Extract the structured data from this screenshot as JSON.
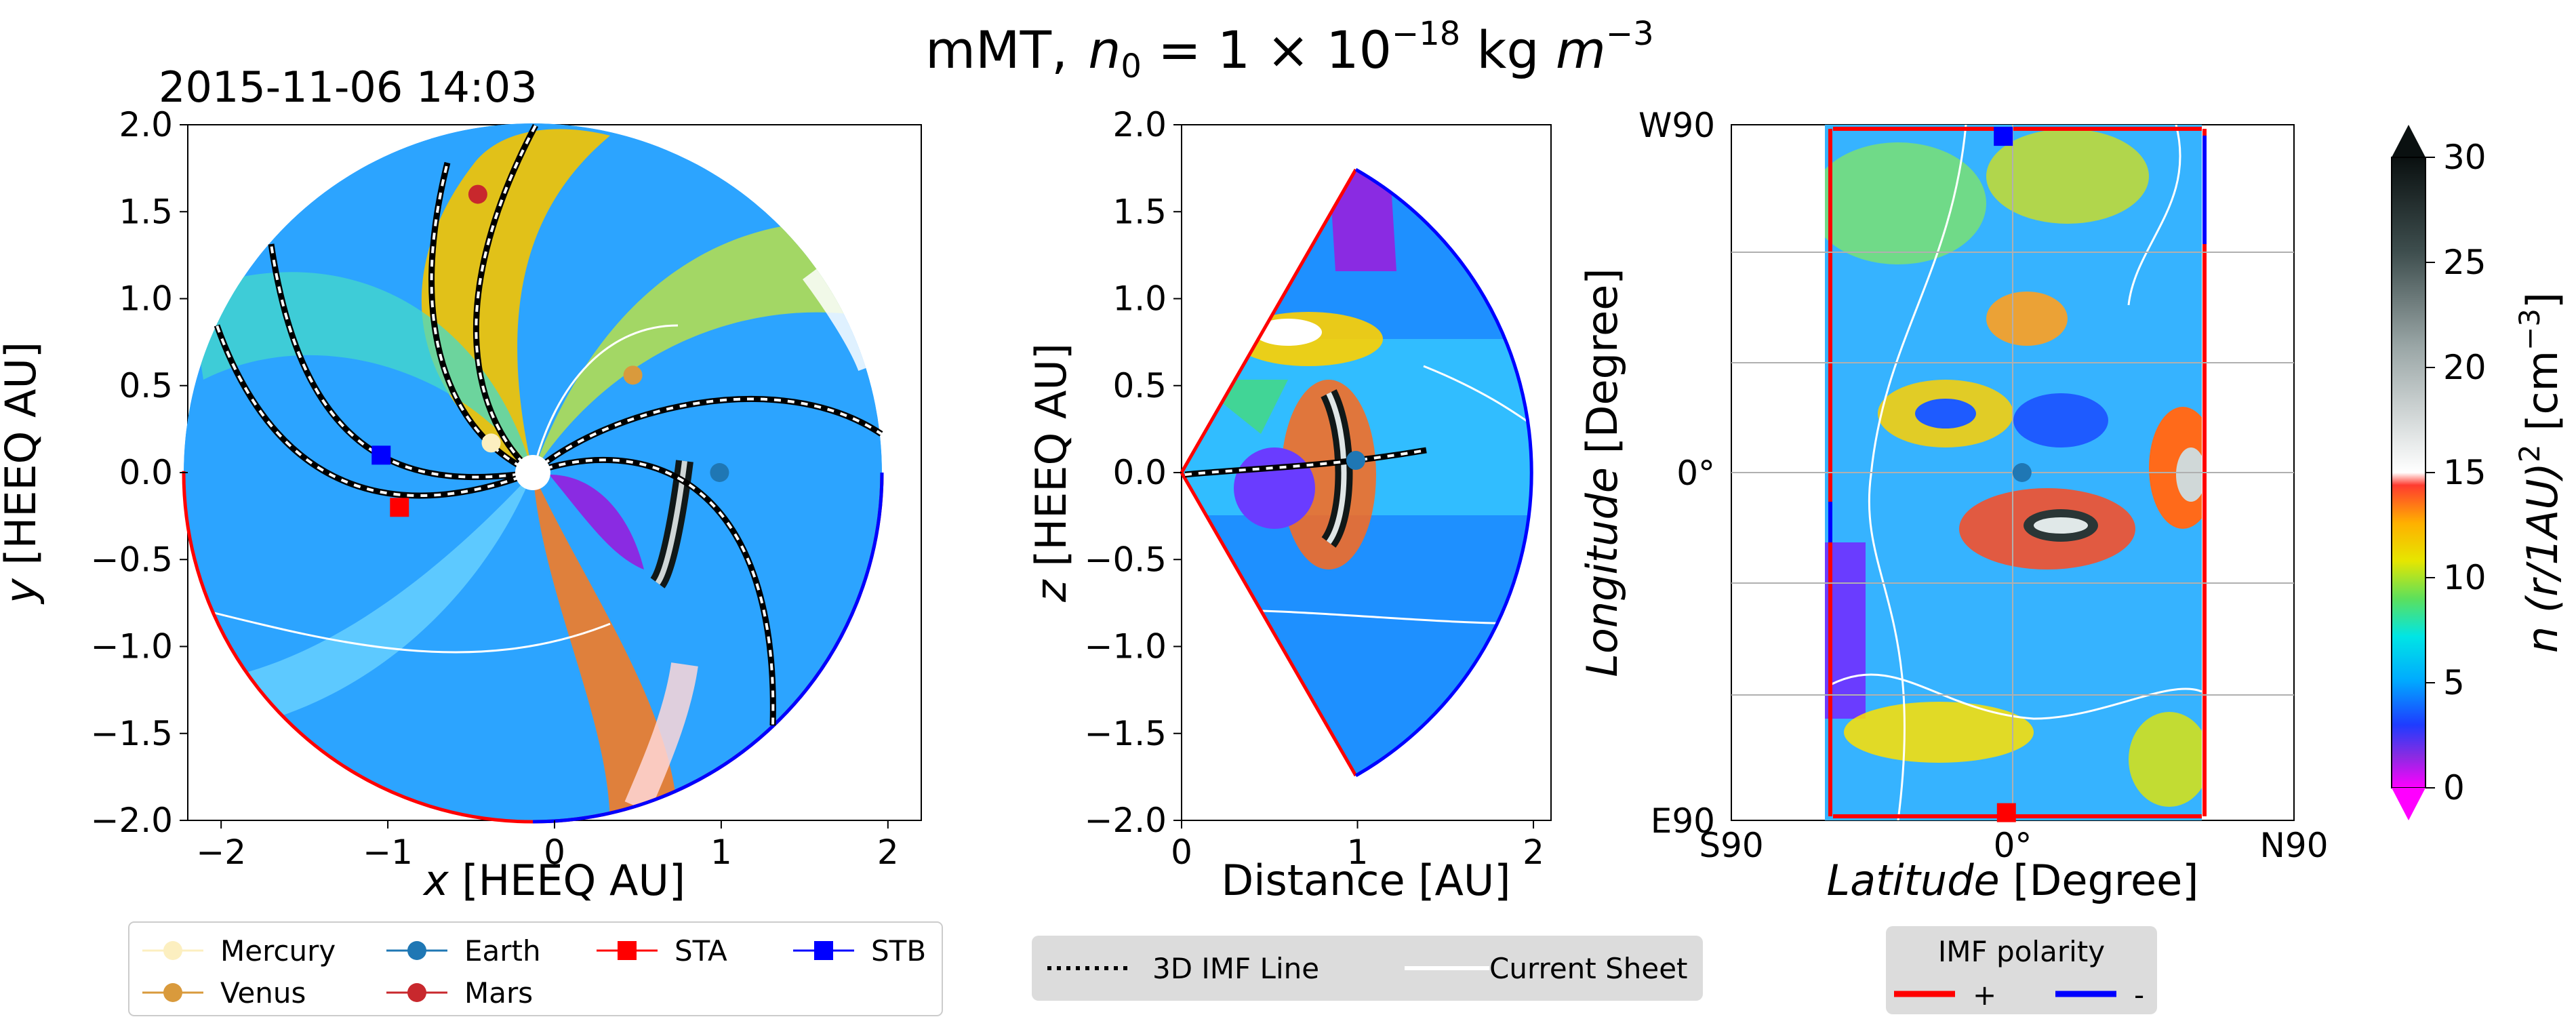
{
  "figure": {
    "title_prefix": "mMT,",
    "title_n": "n",
    "title_sub": "0",
    "title_eq": " = 1 × 10",
    "title_exp": "−18",
    "title_units": " kg ",
    "title_m": "m",
    "title_m_exp": "−3"
  },
  "panel1": {
    "timestamp": "2015-11-06 14:03"
  },
  "colors": {
    "mercury": "#fcefc0",
    "venus": "#d99a3c",
    "earth": "#1f77b4",
    "mars": "#c8282d",
    "sta": "#ff0000",
    "stb": "#0000ff",
    "pos_polarity": "#ff0000",
    "neg_polarity": "#0000ff"
  },
  "chart_data": [
    {
      "type": "heatmap",
      "panel": "equatorial-plane",
      "title": "2015-11-06 14:03",
      "xlabel_var": "x",
      "xlabel_unit": " [HEEQ AU]",
      "ylabel_var": "y",
      "ylabel_unit": " [HEEQ AU]",
      "xlim": [
        -2.2,
        2.2
      ],
      "ylim": [
        -2.0,
        2.0
      ],
      "xticks": [
        "−2",
        "−1",
        "0",
        "1",
        "2"
      ],
      "yticks": [
        "−2.0",
        "−1.5",
        "−1.0",
        "−0.5",
        "0.0",
        "0.5",
        "1.0",
        "1.5",
        "2.0"
      ],
      "markers": [
        {
          "name": "Mercury",
          "x": -0.38,
          "y": 0.17
        },
        {
          "name": "Venus",
          "x": 0.47,
          "y": 0.56
        },
        {
          "name": "Earth",
          "x": 0.99,
          "y": 0.0
        },
        {
          "name": "Mars",
          "x": -0.46,
          "y": 1.6
        },
        {
          "name": "STA",
          "x": -0.93,
          "y": -0.2
        },
        {
          "name": "STB",
          "x": -1.04,
          "y": 0.1
        }
      ]
    },
    {
      "type": "heatmap",
      "panel": "meridional-plane",
      "xlabel": "Distance [AU]",
      "ylabel_var": "z",
      "ylabel_unit": " [HEEQ AU]",
      "xlim": [
        0,
        2.1
      ],
      "ylim": [
        -2.0,
        2.0
      ],
      "xticks": [
        "0",
        "1",
        "2"
      ],
      "yticks": [
        "−2.0",
        "−1.5",
        "−1.0",
        "−0.5",
        "0.0",
        "0.5",
        "1.0",
        "1.5",
        "2.0"
      ],
      "markers": [
        {
          "name": "Earth",
          "x": 0.99,
          "y": 0.07
        }
      ]
    },
    {
      "type": "heatmap",
      "panel": "solar-surface-map",
      "xlabel_var": "Latitude",
      "xlabel_unit": " [Degree]",
      "ylabel_var": "Longitude",
      "ylabel_unit": " [Degree]",
      "xticks": [
        "S90",
        "0°",
        "N90"
      ],
      "yticks": [
        "E90",
        "0°",
        "W90"
      ],
      "markers": [
        {
          "name": "Earth",
          "lat": 3,
          "lon": 0
        },
        {
          "name": "STB",
          "lat": -3,
          "lon": 87
        },
        {
          "name": "STA",
          "lat": -2,
          "lon": -88
        }
      ]
    }
  ],
  "colorbar": {
    "label_pre": "n (r/1AU)",
    "label_sup": "2",
    "label_unit": "  [cm",
    "label_unit_exp": "−3",
    "label_close": "]",
    "ticks": [
      "0",
      "5",
      "10",
      "15",
      "20",
      "25",
      "30"
    ],
    "vmin": 0,
    "vmax": 30
  },
  "legend_planets": {
    "items": [
      "Mercury",
      "Earth",
      "STA",
      "STB",
      "Venus",
      "Mars"
    ]
  },
  "legend_lines": {
    "items": [
      "3D IMF Line",
      "Current Sheet"
    ]
  },
  "legend_polarity": {
    "title": "IMF polarity",
    "items": [
      "+",
      "-"
    ]
  }
}
